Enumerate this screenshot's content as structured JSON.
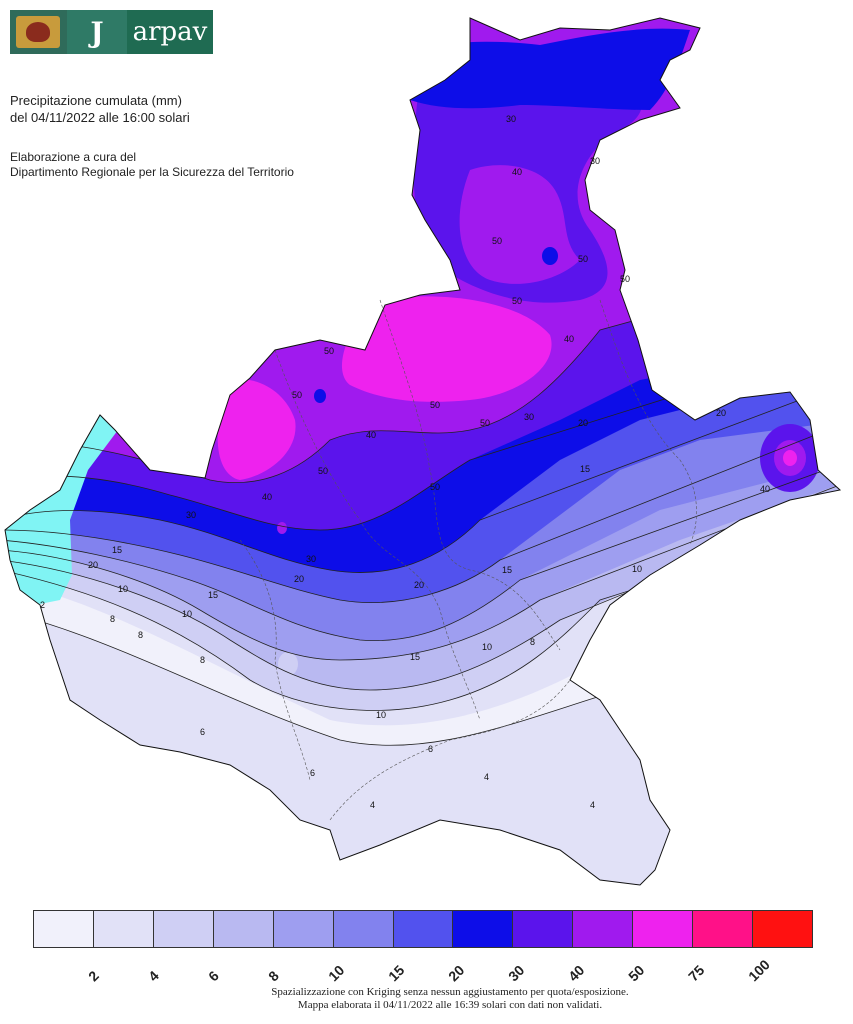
{
  "header": {
    "brand": "arpav",
    "title_line1": "Precipitazione cumulata (mm)",
    "title_line2": "del 04/11/2022 alle 16:00 solari",
    "credit_line1": "Elaborazione a cura del",
    "credit_line2": "Dipartimento Regionale per la Sicurezza del Territorio"
  },
  "legend": {
    "colors": [
      "#f1f1fb",
      "#e1e1f7",
      "#cfcff4",
      "#b9b9f1",
      "#9e9ef0",
      "#8282ee",
      "#5252ee",
      "#0d0de8",
      "#5b14ec",
      "#a01aee",
      "#ee22ee",
      "#ff1188",
      "#ff1111"
    ],
    "labels": [
      "2",
      "4",
      "6",
      "8",
      "10",
      "15",
      "20",
      "30",
      "40",
      "50",
      "75",
      "100"
    ]
  },
  "contour_labels": [
    "2",
    "4",
    "6",
    "8",
    "10",
    "15",
    "20",
    "30",
    "40",
    "50"
  ],
  "footer": {
    "line1": "Spazializzazione con Kriging senza nessun aggiustamento per quota/esposizione.",
    "line2": "Mappa elaborata il 04/11/2022 alle 16:39 solari con dati non validati."
  }
}
